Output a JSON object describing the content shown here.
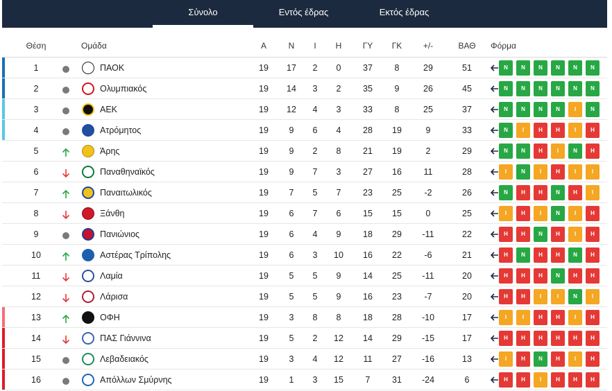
{
  "tabs": [
    {
      "label": "Σύνολο",
      "active": true
    },
    {
      "label": "Εντός έδρας",
      "active": false
    },
    {
      "label": "Εκτός έδρας",
      "active": false
    }
  ],
  "columns": {
    "pos": "Θέση",
    "team": "Ομάδα",
    "played": "Α",
    "won": "Ν",
    "drawn": "Ι",
    "lost": "Η",
    "gf": "ΓΥ",
    "ga": "ΓΚ",
    "gd": "+/-",
    "pts": "ΒΑΘ",
    "form": "Φόρμα"
  },
  "form_labels": {
    "W": "Ν",
    "D": "Ι",
    "L": "Η"
  },
  "colors": {
    "champions": "#1a6fb3",
    "europe": "#58c8e6",
    "playoff_relegation": "#f36f7a",
    "relegation": "#e0192b",
    "win": "#27a844",
    "draw": "#f5a623",
    "loss": "#e53935",
    "header_bg": "#1c2a3f"
  },
  "rows": [
    {
      "pos": "1",
      "trend": "same",
      "team": "ΠΑΟΚ",
      "crest_icon": "paok-crest-icon",
      "zone": "champions",
      "p": "19",
      "w": "17",
      "d": "2",
      "l": "0",
      "gf": "37",
      "ga": "8",
      "gd": "29",
      "pts": "51",
      "form": [
        "W",
        "W",
        "W",
        "W",
        "W",
        "W"
      ]
    },
    {
      "pos": "2",
      "trend": "same",
      "team": "Ολυμπιακός",
      "crest_icon": "olympiacos-crest-icon",
      "zone": "champions",
      "p": "19",
      "w": "14",
      "d": "3",
      "l": "2",
      "gf": "35",
      "ga": "9",
      "gd": "26",
      "pts": "45",
      "form": [
        "W",
        "W",
        "W",
        "W",
        "W",
        "W"
      ]
    },
    {
      "pos": "3",
      "trend": "same",
      "team": "ΑΕΚ",
      "crest_icon": "aek-crest-icon",
      "zone": "europe",
      "p": "19",
      "w": "12",
      "d": "4",
      "l": "3",
      "gf": "33",
      "ga": "8",
      "gd": "25",
      "pts": "37",
      "form": [
        "W",
        "W",
        "W",
        "W",
        "D",
        "W"
      ]
    },
    {
      "pos": "4",
      "trend": "same",
      "team": "Ατρόμητος",
      "crest_icon": "atromitos-crest-icon",
      "zone": "europe",
      "p": "19",
      "w": "9",
      "d": "6",
      "l": "4",
      "gf": "28",
      "ga": "19",
      "gd": "9",
      "pts": "33",
      "form": [
        "W",
        "D",
        "L",
        "L",
        "D",
        "L"
      ]
    },
    {
      "pos": "5",
      "trend": "up",
      "team": "Άρης",
      "crest_icon": "aris-crest-icon",
      "zone": "",
      "p": "19",
      "w": "9",
      "d": "2",
      "l": "8",
      "gf": "21",
      "ga": "19",
      "gd": "2",
      "pts": "29",
      "form": [
        "W",
        "W",
        "L",
        "D",
        "W",
        "L"
      ]
    },
    {
      "pos": "6",
      "trend": "down",
      "team": "Παναθηναϊκός",
      "crest_icon": "panathinaikos-crest-icon",
      "zone": "",
      "p": "19",
      "w": "9",
      "d": "7",
      "l": "3",
      "gf": "27",
      "ga": "16",
      "gd": "11",
      "pts": "28",
      "form": [
        "D",
        "W",
        "D",
        "L",
        "D",
        "D"
      ]
    },
    {
      "pos": "7",
      "trend": "up",
      "team": "Παναιτωλικός",
      "crest_icon": "panetolikos-crest-icon",
      "zone": "",
      "p": "19",
      "w": "7",
      "d": "5",
      "l": "7",
      "gf": "23",
      "ga": "25",
      "gd": "-2",
      "pts": "26",
      "form": [
        "W",
        "L",
        "L",
        "W",
        "L",
        "D"
      ]
    },
    {
      "pos": "8",
      "trend": "down",
      "team": "Ξάνθη",
      "crest_icon": "xanthi-crest-icon",
      "zone": "",
      "p": "19",
      "w": "6",
      "d": "7",
      "l": "6",
      "gf": "15",
      "ga": "15",
      "gd": "0",
      "pts": "25",
      "form": [
        "D",
        "L",
        "D",
        "W",
        "D",
        "L"
      ]
    },
    {
      "pos": "9",
      "trend": "same",
      "team": "Πανιώνιος",
      "crest_icon": "panionios-crest-icon",
      "zone": "",
      "p": "19",
      "w": "6",
      "d": "4",
      "l": "9",
      "gf": "18",
      "ga": "29",
      "gd": "-11",
      "pts": "22",
      "form": [
        "L",
        "L",
        "W",
        "L",
        "D",
        "L"
      ]
    },
    {
      "pos": "10",
      "trend": "up",
      "team": "Αστέρας Τρίπολης",
      "crest_icon": "asteras-crest-icon",
      "zone": "",
      "p": "19",
      "w": "6",
      "d": "3",
      "l": "10",
      "gf": "16",
      "ga": "22",
      "gd": "-6",
      "pts": "21",
      "form": [
        "L",
        "W",
        "L",
        "L",
        "W",
        "L"
      ]
    },
    {
      "pos": "11",
      "trend": "down",
      "team": "Λαμία",
      "crest_icon": "lamia-crest-icon",
      "zone": "",
      "p": "19",
      "w": "5",
      "d": "5",
      "l": "9",
      "gf": "14",
      "ga": "25",
      "gd": "-11",
      "pts": "20",
      "form": [
        "L",
        "L",
        "L",
        "W",
        "L",
        "L"
      ]
    },
    {
      "pos": "12",
      "trend": "down",
      "team": "Λάρισα",
      "crest_icon": "larisa-crest-icon",
      "zone": "",
      "p": "19",
      "w": "5",
      "d": "5",
      "l": "9",
      "gf": "16",
      "ga": "23",
      "gd": "-7",
      "pts": "20",
      "form": [
        "L",
        "L",
        "D",
        "D",
        "W",
        "D"
      ]
    },
    {
      "pos": "13",
      "trend": "up",
      "team": "ΟΦΗ",
      "crest_icon": "ofi-crest-icon",
      "zone": "playoff_relegation",
      "p": "19",
      "w": "3",
      "d": "8",
      "l": "8",
      "gf": "18",
      "ga": "28",
      "gd": "-10",
      "pts": "17",
      "form": [
        "D",
        "D",
        "L",
        "L",
        "D",
        "L"
      ]
    },
    {
      "pos": "14",
      "trend": "down",
      "team": "ΠΑΣ Γιάννινα",
      "crest_icon": "pas-giannina-crest-icon",
      "zone": "relegation",
      "p": "19",
      "w": "5",
      "d": "2",
      "l": "12",
      "gf": "14",
      "ga": "29",
      "gd": "-15",
      "pts": "17",
      "form": [
        "L",
        "L",
        "L",
        "L",
        "L",
        "L"
      ]
    },
    {
      "pos": "15",
      "trend": "same",
      "team": "Λεβαδειακός",
      "crest_icon": "levadiakos-crest-icon",
      "zone": "relegation",
      "p": "19",
      "w": "3",
      "d": "4",
      "l": "12",
      "gf": "11",
      "ga": "27",
      "gd": "-16",
      "pts": "13",
      "form": [
        "D",
        "L",
        "W",
        "L",
        "D",
        "L"
      ]
    },
    {
      "pos": "16",
      "trend": "same",
      "team": "Απόλλων Σμύρνης",
      "crest_icon": "apollon-smyrnis-crest-icon",
      "zone": "relegation",
      "p": "19",
      "w": "1",
      "d": "3",
      "l": "15",
      "gf": "7",
      "ga": "31",
      "gd": "-24",
      "pts": "6",
      "form": [
        "L",
        "L",
        "D",
        "L",
        "L",
        "L"
      ]
    }
  ]
}
